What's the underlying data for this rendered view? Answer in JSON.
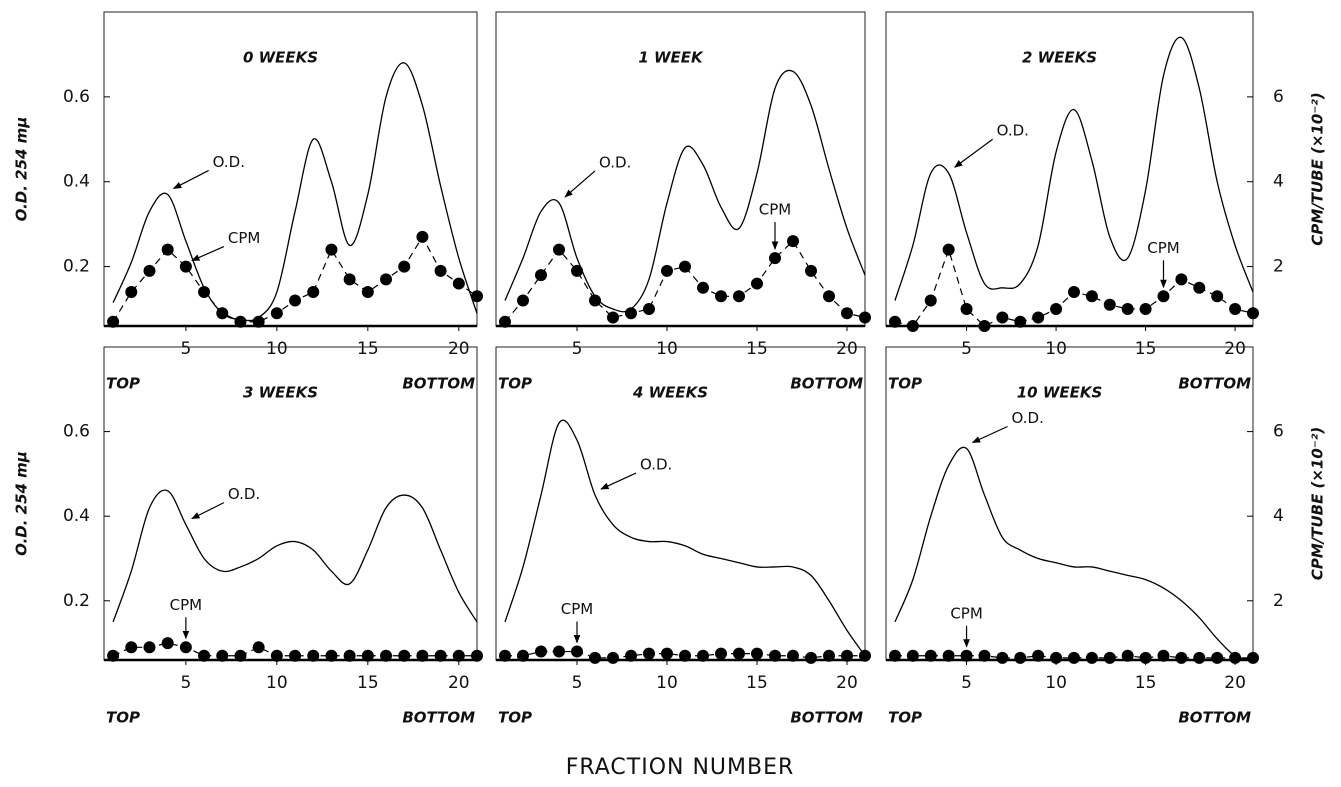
{
  "figure": {
    "xlabel": "FRACTION NUMBER"
  },
  "chart_data": [
    {
      "type": "line",
      "title": "0 WEEKS",
      "ylabel": "O.D. 254 mμ",
      "x": [
        1,
        2,
        3,
        4,
        5,
        6,
        7,
        8,
        9,
        10,
        11,
        12,
        13,
        14,
        15,
        16,
        17,
        18,
        19,
        20,
        21
      ],
      "xlim": [
        0.5,
        21
      ],
      "xticks": [
        5,
        10,
        15,
        20
      ],
      "x_end_labels": [
        "TOP",
        "BOTTOM"
      ],
      "ylim": [
        0.06,
        0.8
      ],
      "yticks": [
        0.2,
        0.4,
        0.6
      ],
      "y2lim": [
        0.6,
        8
      ],
      "series": [
        {
          "name": "O.D.",
          "color": "#000000",
          "values": [
            0.115,
            0.21,
            0.33,
            0.37,
            0.26,
            0.15,
            0.09,
            0.075,
            0.08,
            0.14,
            0.33,
            0.5,
            0.4,
            0.25,
            0.37,
            0.6,
            0.68,
            0.58,
            0.39,
            0.22,
            0.09
          ]
        },
        {
          "name": "CPM",
          "color": "#000000",
          "axis": "y2",
          "values": [
            0.7,
            1.4,
            1.9,
            2.4,
            2.0,
            1.4,
            0.9,
            0.7,
            0.7,
            0.9,
            1.2,
            1.4,
            2.4,
            1.7,
            1.4,
            1.7,
            2.0,
            2.7,
            1.9,
            1.6,
            1.3
          ]
        }
      ]
    },
    {
      "type": "line",
      "title": "1 WEEK",
      "x": [
        1,
        2,
        3,
        4,
        5,
        6,
        7,
        8,
        9,
        10,
        11,
        12,
        13,
        14,
        15,
        16,
        17,
        18,
        19,
        20,
        21
      ],
      "xlim": [
        0.5,
        21
      ],
      "xticks": [
        5,
        10,
        15,
        20
      ],
      "x_end_labels": [
        "TOP",
        "BOTTOM"
      ],
      "ylim": [
        0.06,
        0.8
      ],
      "y2lim": [
        0.6,
        8
      ],
      "series": [
        {
          "name": "O.D.",
          "color": "#000000",
          "values": [
            0.12,
            0.22,
            0.33,
            0.35,
            0.22,
            0.13,
            0.1,
            0.1,
            0.17,
            0.35,
            0.48,
            0.44,
            0.34,
            0.29,
            0.42,
            0.62,
            0.66,
            0.58,
            0.43,
            0.29,
            0.18
          ]
        },
        {
          "name": "CPM",
          "color": "#000000",
          "axis": "y2",
          "values": [
            0.7,
            1.2,
            1.8,
            2.4,
            1.9,
            1.2,
            0.8,
            0.9,
            1.0,
            1.9,
            2.0,
            1.5,
            1.3,
            1.3,
            1.6,
            2.2,
            2.6,
            1.9,
            1.3,
            0.9,
            0.8
          ]
        }
      ]
    },
    {
      "type": "line",
      "title": "2 WEEKS",
      "y2label": "CPM/TUBE (×10⁻²)",
      "x": [
        1,
        2,
        3,
        4,
        5,
        6,
        7,
        8,
        9,
        10,
        11,
        12,
        13,
        14,
        15,
        16,
        17,
        18,
        19,
        20,
        21
      ],
      "xlim": [
        0.5,
        21
      ],
      "xticks": [
        5,
        10,
        15,
        20
      ],
      "x_end_labels": [
        "TOP",
        "BOTTOM"
      ],
      "ylim": [
        0.06,
        0.8
      ],
      "y2lim": [
        0.6,
        8
      ],
      "y2ticks": [
        2,
        4,
        6
      ],
      "series": [
        {
          "name": "O.D.",
          "color": "#000000",
          "values": [
            0.12,
            0.25,
            0.42,
            0.42,
            0.28,
            0.16,
            0.15,
            0.16,
            0.25,
            0.47,
            0.57,
            0.45,
            0.27,
            0.22,
            0.38,
            0.65,
            0.74,
            0.62,
            0.4,
            0.25,
            0.14
          ]
        },
        {
          "name": "CPM",
          "color": "#000000",
          "axis": "y2",
          "values": [
            0.7,
            0.6,
            1.2,
            2.4,
            1.0,
            0.6,
            0.8,
            0.7,
            0.8,
            1.0,
            1.4,
            1.3,
            1.1,
            1.0,
            1.0,
            1.3,
            1.7,
            1.5,
            1.3,
            1.0,
            0.9
          ]
        }
      ]
    },
    {
      "type": "line",
      "title": "3 WEEKS",
      "ylabel": "O.D. 254 mμ",
      "x": [
        1,
        2,
        3,
        4,
        5,
        6,
        7,
        8,
        9,
        10,
        11,
        12,
        13,
        14,
        15,
        16,
        17,
        18,
        19,
        20,
        21
      ],
      "xlim": [
        0.5,
        21
      ],
      "xticks": [
        5,
        10,
        15,
        20
      ],
      "x_end_labels": [
        "TOP",
        "BOTTOM"
      ],
      "ylim": [
        0.06,
        0.8
      ],
      "yticks": [
        0.2,
        0.4,
        0.6
      ],
      "y2lim": [
        0.6,
        8
      ],
      "series": [
        {
          "name": "O.D.",
          "color": "#000000",
          "values": [
            0.15,
            0.27,
            0.42,
            0.46,
            0.38,
            0.3,
            0.27,
            0.28,
            0.3,
            0.33,
            0.34,
            0.32,
            0.27,
            0.24,
            0.32,
            0.42,
            0.45,
            0.42,
            0.32,
            0.22,
            0.15
          ]
        },
        {
          "name": "CPM",
          "color": "#000000",
          "axis": "y2",
          "values": [
            0.7,
            0.9,
            0.9,
            1.0,
            0.9,
            0.7,
            0.7,
            0.7,
            0.9,
            0.7,
            0.7,
            0.7,
            0.7,
            0.7,
            0.7,
            0.7,
            0.7,
            0.7,
            0.7,
            0.7,
            0.7
          ]
        }
      ]
    },
    {
      "type": "line",
      "title": "4 WEEKS",
      "x": [
        1,
        2,
        3,
        4,
        5,
        6,
        7,
        8,
        9,
        10,
        11,
        12,
        13,
        14,
        15,
        16,
        17,
        18,
        19,
        20,
        21
      ],
      "xlim": [
        0.5,
        21
      ],
      "xticks": [
        5,
        10,
        15,
        20
      ],
      "x_end_labels": [
        "TOP",
        "BOTTOM"
      ],
      "ylim": [
        0.06,
        0.8
      ],
      "y2lim": [
        0.6,
        8
      ],
      "series": [
        {
          "name": "O.D.",
          "color": "#000000",
          "values": [
            0.15,
            0.28,
            0.45,
            0.62,
            0.58,
            0.45,
            0.38,
            0.35,
            0.34,
            0.34,
            0.33,
            0.31,
            0.3,
            0.29,
            0.28,
            0.28,
            0.28,
            0.26,
            0.2,
            0.13,
            0.07
          ]
        },
        {
          "name": "CPM",
          "color": "#000000",
          "axis": "y2",
          "values": [
            0.7,
            0.7,
            0.8,
            0.8,
            0.8,
            0.65,
            0.65,
            0.7,
            0.75,
            0.75,
            0.7,
            0.7,
            0.75,
            0.75,
            0.75,
            0.7,
            0.7,
            0.65,
            0.7,
            0.7,
            0.7
          ]
        }
      ]
    },
    {
      "type": "line",
      "title": "10 WEEKS",
      "y2label": "CPM/TUBE (×10⁻²)",
      "x": [
        1,
        2,
        3,
        4,
        5,
        6,
        7,
        8,
        9,
        10,
        11,
        12,
        13,
        14,
        15,
        16,
        17,
        18,
        19,
        20,
        21
      ],
      "xlim": [
        0.5,
        21
      ],
      "xticks": [
        5,
        10,
        15,
        20
      ],
      "x_end_labels": [
        "TOP",
        "BOTTOM"
      ],
      "ylim": [
        0.06,
        0.8
      ],
      "y2lim": [
        0.6,
        8
      ],
      "y2ticks": [
        2,
        4,
        6
      ],
      "series": [
        {
          "name": "O.D.",
          "color": "#000000",
          "values": [
            0.15,
            0.25,
            0.4,
            0.52,
            0.56,
            0.45,
            0.35,
            0.32,
            0.3,
            0.29,
            0.28,
            0.28,
            0.27,
            0.26,
            0.25,
            0.23,
            0.2,
            0.16,
            0.11,
            0.07,
            0.06
          ]
        },
        {
          "name": "CPM",
          "color": "#000000",
          "axis": "y2",
          "values": [
            0.7,
            0.7,
            0.7,
            0.7,
            0.7,
            0.7,
            0.65,
            0.65,
            0.7,
            0.65,
            0.65,
            0.65,
            0.65,
            0.7,
            0.65,
            0.7,
            0.65,
            0.65,
            0.65,
            0.65,
            0.65
          ]
        }
      ]
    }
  ]
}
